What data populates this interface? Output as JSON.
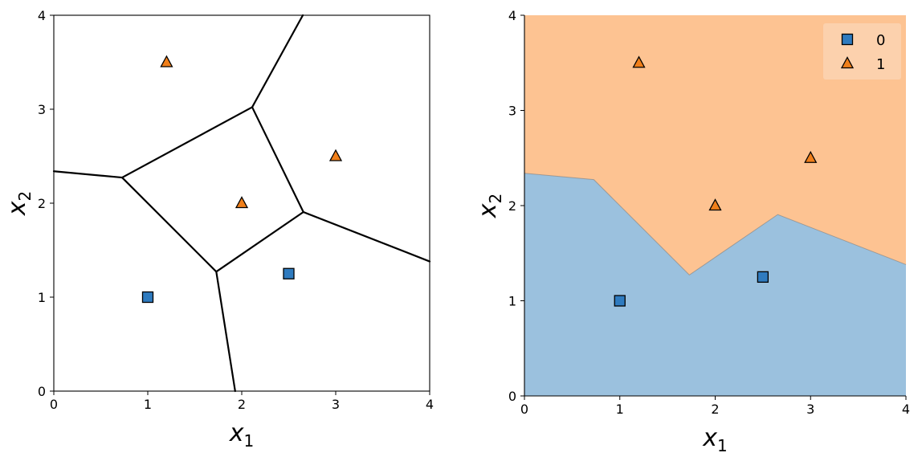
{
  "chart_data": [
    {
      "type": "scatter",
      "xlim": [
        0,
        4
      ],
      "ylim": [
        0,
        4
      ],
      "xticks": [
        "0",
        "1",
        "2",
        "3",
        "4"
      ],
      "yticks": [
        "0",
        "1",
        "2",
        "3",
        "4"
      ],
      "xlabel": {
        "base": "x",
        "sub": "1"
      },
      "ylabel": {
        "base": "x",
        "sub": "2"
      },
      "grid": false,
      "overlay": "Voronoi cell boundaries (black lines)",
      "voronoi_vertices": [
        [
          0.727,
          2.273
        ],
        [
          2.111,
          3.022
        ],
        [
          2.656,
          1.906
        ],
        [
          1.729,
          1.271
        ]
      ],
      "voronoi_edges": [
        {
          "from": [
            0,
            2.34
          ],
          "to": [
            0.727,
            2.273
          ]
        },
        {
          "from": [
            0.727,
            2.273
          ],
          "to": [
            2.111,
            3.022
          ]
        },
        {
          "from": [
            2.111,
            3.022
          ],
          "to": [
            2.656,
            1.906
          ]
        },
        {
          "from": [
            2.656,
            1.906
          ],
          "to": [
            1.729,
            1.271
          ]
        },
        {
          "from": [
            1.729,
            1.271
          ],
          "to": [
            0.727,
            2.273
          ]
        },
        {
          "from": [
            2.111,
            3.022
          ],
          "to": [
            2.65,
            4.0
          ]
        },
        {
          "from": [
            2.656,
            1.906
          ],
          "to": [
            4.0,
            1.38
          ]
        },
        {
          "from": [
            1.729,
            1.271
          ],
          "to": [
            1.93,
            0.0
          ]
        }
      ],
      "series": [
        {
          "class": "0",
          "marker": "square",
          "color": "#2f7bbf",
          "points": [
            [
              1.0,
              1.0
            ],
            [
              2.5,
              1.25
            ]
          ]
        },
        {
          "class": "1",
          "marker": "triangle",
          "color": "#f07f1a",
          "points": [
            [
              1.2,
              3.5
            ],
            [
              3.0,
              2.5
            ],
            [
              2.0,
              2.0
            ]
          ]
        }
      ]
    },
    {
      "type": "scatter",
      "xlim": [
        0,
        4
      ],
      "ylim": [
        0,
        4
      ],
      "xticks": [
        "0",
        "1",
        "2",
        "3",
        "4"
      ],
      "yticks": [
        "0",
        "1",
        "2",
        "3",
        "4"
      ],
      "xlabel": {
        "base": "x",
        "sub": "1"
      },
      "ylabel": {
        "base": "x",
        "sub": "2"
      },
      "grid": false,
      "overlay": "decision regions (filled)",
      "region_colors": {
        "0": "#9bc1de",
        "1": "#fdc392"
      },
      "decision_boundary": [
        [
          0,
          2.34
        ],
        [
          0.727,
          2.273
        ],
        [
          1.729,
          1.271
        ],
        [
          2.656,
          1.906
        ],
        [
          4.0,
          1.38
        ]
      ],
      "legend": {
        "position": "top-right",
        "entries": [
          "0",
          "1"
        ]
      },
      "series": [
        {
          "class": "0",
          "marker": "square",
          "color": "#2f7bbf",
          "points": [
            [
              1.0,
              1.0
            ],
            [
              2.5,
              1.25
            ]
          ]
        },
        {
          "class": "1",
          "marker": "triangle",
          "color": "#f07f1a",
          "points": [
            [
              1.2,
              3.5
            ],
            [
              3.0,
              2.5
            ],
            [
              2.0,
              2.0
            ]
          ]
        }
      ]
    }
  ]
}
